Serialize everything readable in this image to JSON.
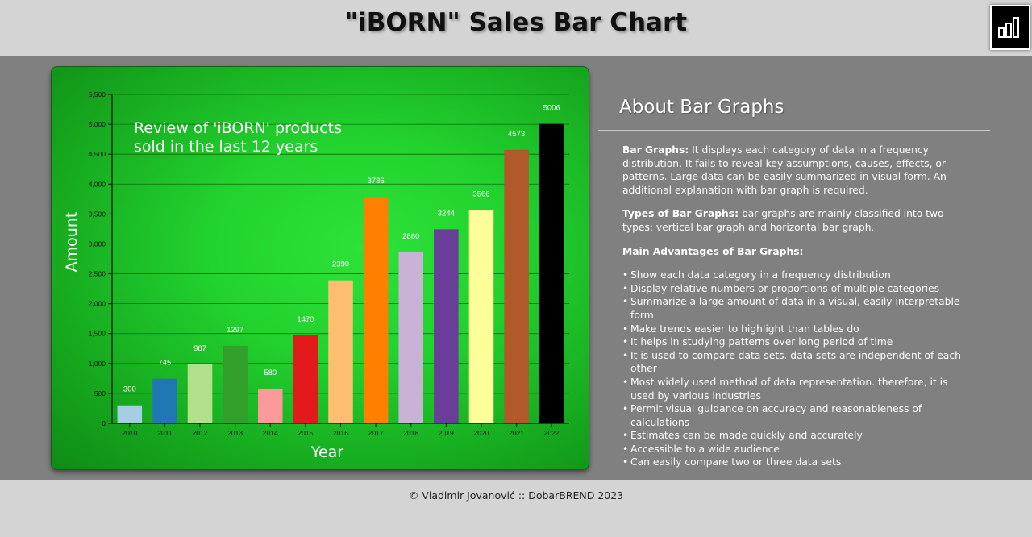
{
  "header": {
    "title": "\"iBORN\" Sales Bar Chart",
    "logo_icon": "bar-chart-logo-icon"
  },
  "chart_data": {
    "type": "bar",
    "title": "Review of 'iBORN' products sold in the last 12 years",
    "title_lines": [
      "Review of 'iBORN' products",
      "sold in the last 12 years"
    ],
    "xlabel": "Year",
    "ylabel": "Amount",
    "categories": [
      "2010",
      "2011",
      "2012",
      "2013",
      "2014",
      "2015",
      "2016",
      "2017",
      "2018",
      "2019",
      "2020",
      "2021",
      "2022"
    ],
    "values": [
      300,
      745,
      987,
      1297,
      580,
      1470,
      2390,
      3786,
      2860,
      3244,
      3566,
      4573,
      5006
    ],
    "colors": [
      "#a6cee3",
      "#1f78b4",
      "#b2df8a",
      "#33a02c",
      "#fb9a99",
      "#e31a1c",
      "#fdbf6f",
      "#ff7f00",
      "#cab2d6",
      "#6a3d9a",
      "#ffff99",
      "#b15928",
      "#000000"
    ],
    "ylim": [
      0,
      5500
    ],
    "yticks": [
      0,
      500,
      1000,
      1500,
      2000,
      2500,
      3000,
      3500,
      4000,
      4500,
      5000,
      5500
    ],
    "ytick_labels": [
      "0",
      "500",
      "1,000",
      "1,500",
      "2,000",
      "2,500",
      "3,000",
      "3,500",
      "4,000",
      "4,500",
      "5,000",
      "5,500"
    ],
    "grid": true,
    "data_labels": true
  },
  "about": {
    "heading": "About Bar Graphs",
    "p1_label": "Bar Graphs:",
    "p1_text": " It displays each category of data in a frequency distribution. It fails to reveal key assumptions, causes, effects, or patterns. Large data can be easily summarized in visual form. An additional explanation with bar graph is required.",
    "p2_label": "Types of Bar Graphs:",
    "p2_text": " bar graphs are mainly classified into two types: vertical bar graph and horizontal bar graph.",
    "p3_label": "Main Advantages of Bar Graphs:",
    "advantages": [
      "Show each data category in a frequency distribution",
      "Display relative numbers or proportions of multiple categories",
      "Summarize a large amount of data in a visual, easily interpretable form",
      "Make trends easier to highlight than tables do",
      "It helps in studying patterns over long period of time",
      "It is used to compare data sets. data sets are independent of each other",
      "Most widely used method of data representation. therefore, it is used by various industries",
      "Permit visual guidance on accuracy and reasonableness of calculations",
      "Estimates can be made quickly and accurately",
      "Accessible to a wide audience",
      "Can easily compare two or three data sets"
    ]
  },
  "footer": {
    "text": "© Vladimir Jovanović :: DobarBREND 2023"
  }
}
